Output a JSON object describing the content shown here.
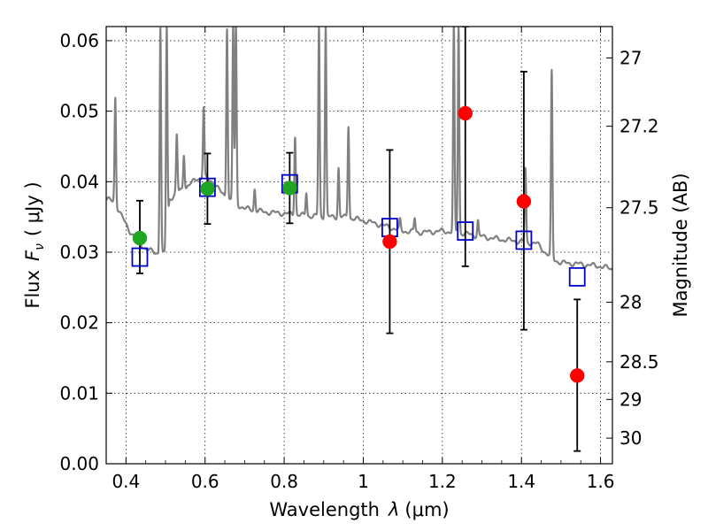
{
  "chart_data": {
    "type": "scatter",
    "xlabel_text": "Wavelength",
    "xlabel_symbol": "λ",
    "xlabel_unit": "(μm)",
    "ylabel_text": "Flux",
    "ylabel_symbol": "F",
    "ylabel_subscript": "ν",
    "ylabel_unit": "( μJy )",
    "ylabel_right": "Magnitude (AB)",
    "xlim": [
      0.35,
      1.63
    ],
    "ylim": [
      0.0,
      0.062
    ],
    "x_ticks": [
      0.4,
      0.6,
      0.8,
      1.0,
      1.2,
      1.4,
      1.6
    ],
    "x_tick_labels": [
      "0.4",
      "0.6",
      "0.8",
      "1",
      "1.2",
      "1.4",
      "1.6"
    ],
    "y_ticks": [
      0.0,
      0.01,
      0.02,
      0.03,
      0.04,
      0.05,
      0.06
    ],
    "y_tick_labels": [
      "0.00",
      "0.01",
      "0.02",
      "0.03",
      "0.04",
      "0.05",
      "0.06"
    ],
    "mag_ticks": [
      27,
      27.2,
      27.5,
      28,
      28.5,
      29,
      30
    ],
    "mag_tick_labels": [
      "27",
      "27.2",
      "27.5",
      "28",
      "28.5",
      "29",
      "30"
    ],
    "colors": {
      "sed": "#808080",
      "green": "#1fa51f",
      "red": "#ff0000",
      "model": "#0000cc",
      "errorbar": "#000000"
    },
    "series": [
      {
        "name": "green-detections",
        "marker": "filled-circle",
        "points": [
          {
            "x": 0.435,
            "y": 0.032,
            "yerr_low": 0.027,
            "yerr_high": 0.0373
          },
          {
            "x": 0.606,
            "y": 0.039,
            "yerr_low": 0.034,
            "yerr_high": 0.044
          },
          {
            "x": 0.814,
            "y": 0.0391,
            "yerr_low": 0.0341,
            "yerr_high": 0.0441
          }
        ]
      },
      {
        "name": "red-measurements",
        "marker": "filled-circle",
        "points": [
          {
            "x": 1.067,
            "y": 0.0315,
            "yerr_low": 0.0185,
            "yerr_high": 0.0445
          },
          {
            "x": 1.258,
            "y": 0.0497,
            "yerr_low": 0.028,
            "yerr_high": 0.062
          },
          {
            "x": 1.406,
            "y": 0.0372,
            "yerr_low": 0.019,
            "yerr_high": 0.0556
          },
          {
            "x": 1.541,
            "y": 0.0125,
            "yerr_low": 0.0018,
            "yerr_high": 0.0233
          }
        ]
      },
      {
        "name": "model-photometry",
        "marker": "open-square",
        "points": [
          {
            "x": 0.435,
            "y": 0.0293
          },
          {
            "x": 0.606,
            "y": 0.0392
          },
          {
            "x": 0.814,
            "y": 0.0397
          },
          {
            "x": 1.067,
            "y": 0.0335
          },
          {
            "x": 1.258,
            "y": 0.033
          },
          {
            "x": 1.406,
            "y": 0.0317
          },
          {
            "x": 1.541,
            "y": 0.0265
          }
        ]
      }
    ],
    "sed_continuum": [
      [
        0.35,
        0.0375
      ],
      [
        0.37,
        0.0372
      ],
      [
        0.39,
        0.035
      ],
      [
        0.41,
        0.033
      ],
      [
        0.43,
        0.0315
      ],
      [
        0.45,
        0.0305
      ],
      [
        0.47,
        0.03
      ],
      [
        0.49,
        0.0298
      ],
      [
        0.5,
        0.0297
      ],
      [
        0.505,
        0.0335
      ],
      [
        0.51,
        0.0375
      ],
      [
        0.53,
        0.0385
      ],
      [
        0.56,
        0.0395
      ],
      [
        0.58,
        0.0405
      ],
      [
        0.6,
        0.0405
      ],
      [
        0.62,
        0.04
      ],
      [
        0.64,
        0.0385
      ],
      [
        0.66,
        0.0375
      ],
      [
        0.68,
        0.0368
      ],
      [
        0.7,
        0.0362
      ],
      [
        0.75,
        0.0357
      ],
      [
        0.8,
        0.0355
      ],
      [
        0.85,
        0.0352
      ],
      [
        0.9,
        0.035
      ],
      [
        0.95,
        0.035
      ],
      [
        1.0,
        0.0345
      ],
      [
        1.05,
        0.0338
      ],
      [
        1.1,
        0.033
      ],
      [
        1.15,
        0.0328
      ],
      [
        1.2,
        0.033
      ],
      [
        1.25,
        0.0327
      ],
      [
        1.3,
        0.0322
      ],
      [
        1.35,
        0.0318
      ],
      [
        1.4,
        0.0315
      ],
      [
        1.44,
        0.0312
      ],
      [
        1.46,
        0.03
      ],
      [
        1.48,
        0.029
      ],
      [
        1.5,
        0.0285
      ],
      [
        1.55,
        0.0283
      ],
      [
        1.6,
        0.028
      ],
      [
        1.63,
        0.0276
      ]
    ],
    "sed_lines": [
      {
        "x": 0.373,
        "peak": 0.052
      },
      {
        "x": 0.487,
        "peak": 0.062
      },
      {
        "x": 0.503,
        "peak": 0.062
      },
      {
        "x": 0.5285,
        "peak": 0.0465
      },
      {
        "x": 0.5465,
        "peak": 0.044
      },
      {
        "x": 0.5965,
        "peak": 0.0505
      },
      {
        "x": 0.6555,
        "peak": 0.062
      },
      {
        "x": 0.671,
        "peak": 0.062
      },
      {
        "x": 0.678,
        "peak": 0.062
      },
      {
        "x": 0.7255,
        "peak": 0.039
      },
      {
        "x": 0.8275,
        "peak": 0.0465
      },
      {
        "x": 0.856,
        "peak": 0.0385
      },
      {
        "x": 0.888,
        "peak": 0.062
      },
      {
        "x": 0.905,
        "peak": 0.062
      },
      {
        "x": 0.9375,
        "peak": 0.042
      },
      {
        "x": 0.9625,
        "peak": 0.048
      },
      {
        "x": 1.093,
        "peak": 0.0345
      },
      {
        "x": 1.13,
        "peak": 0.0348
      },
      {
        "x": 1.229,
        "peak": 0.062
      },
      {
        "x": 1.241,
        "peak": 0.062
      },
      {
        "x": 1.29,
        "peak": 0.0345
      },
      {
        "x": 1.41,
        "peak": 0.0418
      },
      {
        "x": 1.4765,
        "peak": 0.0555
      }
    ]
  }
}
